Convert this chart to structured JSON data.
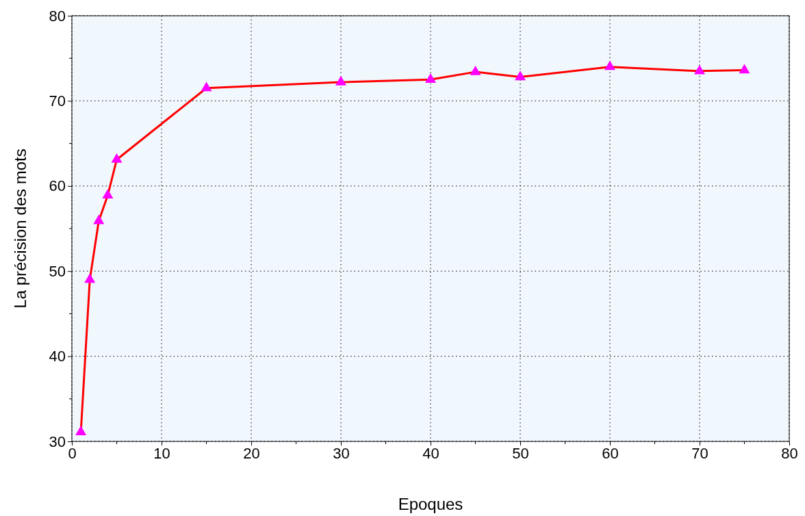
{
  "chart_data": {
    "type": "line",
    "xlabel": "Epoques",
    "ylabel": "La précision des mots",
    "xlim": [
      0,
      80
    ],
    "xticks": [
      0,
      10,
      20,
      30,
      40,
      50,
      60,
      70,
      80
    ],
    "ylim": [
      30,
      80
    ],
    "yticks": [
      30,
      40,
      50,
      60,
      70,
      80
    ],
    "grid": true,
    "marker": "triangle",
    "line_style": "solid",
    "series": [
      {
        "x": [
          1,
          2,
          3,
          4,
          5,
          15,
          30,
          40,
          45,
          50,
          60,
          70,
          75
        ],
        "values": [
          31.1,
          49.0,
          55.9,
          58.9,
          63.1,
          71.5,
          72.2,
          72.5,
          73.4,
          72.8,
          74.0,
          73.5,
          73.6
        ],
        "color": "#ff0000",
        "colors": [
          "#ff00ff",
          "#ff00ff",
          "#ff00ff",
          "#ff00ff",
          "#ff00ff",
          "#ff00ff",
          "#ff00ff",
          "#ff00ff",
          "#ff00ff",
          "#ff00ff",
          "#ff00ff",
          "#ff00ff",
          "#ff00ff"
        ]
      }
    ]
  }
}
